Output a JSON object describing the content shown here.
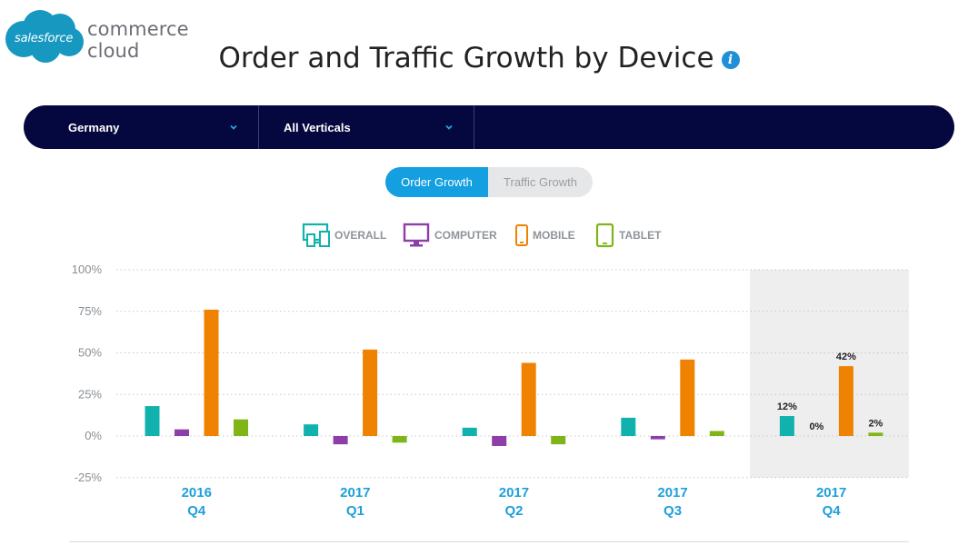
{
  "brand": {
    "cloud_text": "salesforce",
    "product_text": "commerce cloud",
    "cloud_color": "#1798c1"
  },
  "page": {
    "title": "Order and Traffic Growth by Device",
    "info_icon_glyph": "i"
  },
  "filters": {
    "country": "Germany",
    "vertical": "All Verticals"
  },
  "toggle": {
    "order_label": "Order Growth",
    "traffic_label": "Traffic Growth",
    "active": "Order Growth"
  },
  "legend": [
    {
      "label": "OVERALL",
      "icon": "devices-icon",
      "color": "#11b2ad"
    },
    {
      "label": "COMPUTER",
      "icon": "monitor-icon",
      "color": "#8e3ea8"
    },
    {
      "label": "MOBILE",
      "icon": "phone-icon",
      "color": "#ef8200"
    },
    {
      "label": "TABLET",
      "icon": "tablet-icon",
      "color": "#7fb518"
    }
  ],
  "chart_data": {
    "type": "bar",
    "categories": [
      [
        "2016",
        "Q4"
      ],
      [
        "2017",
        "Q1"
      ],
      [
        "2017",
        "Q2"
      ],
      [
        "2017",
        "Q3"
      ],
      [
        "2017",
        "Q4"
      ]
    ],
    "series": [
      {
        "name": "OVERALL",
        "color": "#11b2ad",
        "values": [
          18,
          7,
          5,
          11,
          12
        ]
      },
      {
        "name": "COMPUTER",
        "color": "#8e3ea8",
        "values": [
          4,
          -5,
          -6,
          -2,
          0
        ]
      },
      {
        "name": "MOBILE",
        "color": "#ef8200",
        "values": [
          76,
          52,
          44,
          46,
          42
        ]
      },
      {
        "name": "TABLET",
        "color": "#7fb518",
        "values": [
          10,
          -4,
          -5,
          3,
          2
        ]
      }
    ],
    "data_labels": {
      "category_index": 4,
      "labels": [
        "12%",
        "0%",
        "42%",
        "2%"
      ]
    },
    "highlight_category": 4,
    "yticks": [
      "100%",
      "75%",
      "50%",
      "25%",
      "0%",
      "-25%"
    ],
    "ytick_values": [
      100,
      75,
      50,
      25,
      0,
      -25
    ],
    "ylim": [
      -25,
      100
    ],
    "grid": true,
    "title": "",
    "xlabel": "",
    "ylabel": ""
  }
}
